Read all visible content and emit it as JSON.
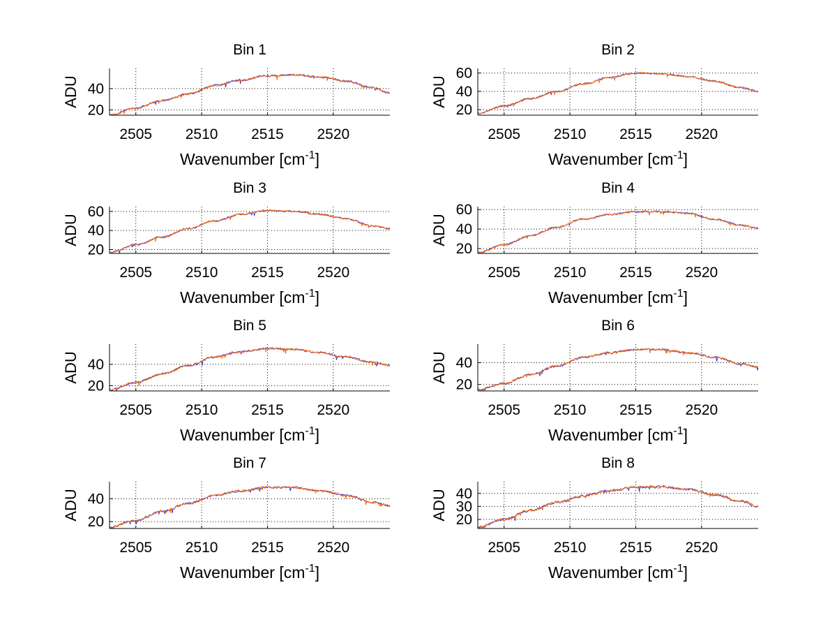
{
  "figure": {
    "colors": {
      "line_primary": "#ff6600",
      "line_secondary": "#3333cc",
      "axis": "#000000",
      "grid": "#000000"
    }
  },
  "chart_data": [
    {
      "type": "line",
      "title": "Bin 1",
      "xlabel": "Wavenumber [cm",
      "xlabel_sup": "-1",
      "xlabel_end": "]",
      "ylabel": "ADU",
      "xlim": [
        2503,
        2524.3
      ],
      "ylim": [
        15,
        59
      ],
      "xticks": [
        2505,
        2510,
        2515,
        2520
      ],
      "yticks": [
        20,
        40
      ],
      "series": [
        {
          "x": [
            2503,
            2505,
            2507,
            2509,
            2511,
            2513,
            2515,
            2517,
            2519,
            2521,
            2523,
            2524.3
          ],
          "values": [
            15,
            22,
            29,
            35,
            43,
            48,
            52,
            53,
            51,
            47,
            41,
            36
          ]
        }
      ]
    },
    {
      "type": "line",
      "title": "Bin 2",
      "xlabel": "Wavenumber [cm",
      "xlabel_sup": "-1",
      "xlabel_end": "]",
      "ylabel": "ADU",
      "xlim": [
        2503,
        2524.3
      ],
      "ylim": [
        14,
        65
      ],
      "xticks": [
        2505,
        2510,
        2515,
        2520
      ],
      "yticks": [
        20,
        40,
        60
      ],
      "series": [
        {
          "x": [
            2503,
            2505,
            2507,
            2509,
            2511,
            2513,
            2515,
            2517,
            2519,
            2521,
            2523,
            2524.3
          ],
          "values": [
            16,
            24,
            32,
            40,
            48,
            55,
            60,
            59,
            56,
            51,
            44,
            40
          ]
        }
      ]
    },
    {
      "type": "line",
      "title": "Bin 3",
      "xlabel": "Wavenumber [cm",
      "xlabel_sup": "-1",
      "xlabel_end": "]",
      "ylabel": "ADU",
      "xlim": [
        2503,
        2524.3
      ],
      "ylim": [
        16,
        65
      ],
      "xticks": [
        2505,
        2510,
        2515,
        2520
      ],
      "yticks": [
        20,
        40,
        60
      ],
      "series": [
        {
          "x": [
            2503,
            2505,
            2507,
            2509,
            2511,
            2513,
            2515,
            2517,
            2519,
            2521,
            2523,
            2524.3
          ],
          "values": [
            17,
            25,
            33,
            42,
            50,
            57,
            61,
            60,
            57,
            52,
            45,
            42
          ]
        }
      ]
    },
    {
      "type": "line",
      "title": "Bin 4",
      "xlabel": "Wavenumber [cm",
      "xlabel_sup": "-1",
      "xlabel_end": "]",
      "ylabel": "ADU",
      "xlim": [
        2503,
        2524.3
      ],
      "ylim": [
        15,
        63
      ],
      "xticks": [
        2505,
        2510,
        2515,
        2520
      ],
      "yticks": [
        20,
        40,
        60
      ],
      "series": [
        {
          "x": [
            2503,
            2505,
            2507,
            2509,
            2511,
            2513,
            2515,
            2517,
            2519,
            2521,
            2523,
            2524.3
          ],
          "values": [
            16,
            24,
            33,
            42,
            50,
            55,
            58,
            58,
            56,
            50,
            44,
            41
          ]
        }
      ]
    },
    {
      "type": "line",
      "title": "Bin 5",
      "xlabel": "Wavenumber [cm",
      "xlabel_sup": "-1",
      "xlabel_end": "]",
      "ylabel": "ADU",
      "xlim": [
        2503,
        2524.3
      ],
      "ylim": [
        15,
        59
      ],
      "xticks": [
        2505,
        2510,
        2515,
        2520
      ],
      "yticks": [
        20,
        40
      ],
      "series": [
        {
          "x": [
            2503,
            2505,
            2507,
            2509,
            2511,
            2513,
            2515,
            2517,
            2519,
            2521,
            2523,
            2524.3
          ],
          "values": [
            16,
            23,
            31,
            39,
            47,
            52,
            55,
            54,
            51,
            47,
            42,
            39
          ]
        }
      ]
    },
    {
      "type": "line",
      "title": "Bin 6",
      "xlabel": "Wavenumber [cm",
      "xlabel_sup": "-1",
      "xlabel_end": "]",
      "ylabel": "ADU",
      "xlim": [
        2503,
        2524.3
      ],
      "ylim": [
        14,
        57
      ],
      "xticks": [
        2505,
        2510,
        2515,
        2520
      ],
      "yticks": [
        20,
        40
      ],
      "series": [
        {
          "x": [
            2503,
            2505,
            2507,
            2509,
            2511,
            2513,
            2515,
            2517,
            2519,
            2521,
            2523,
            2524.3
          ],
          "values": [
            15,
            21,
            29,
            37,
            45,
            49,
            52,
            52,
            49,
            45,
            39,
            36
          ]
        }
      ]
    },
    {
      "type": "line",
      "title": "Bin 7",
      "xlabel": "Wavenumber [cm",
      "xlabel_sup": "-1",
      "xlabel_end": "]",
      "ylabel": "ADU",
      "xlim": [
        2503,
        2524.3
      ],
      "ylim": [
        14,
        55
      ],
      "xticks": [
        2505,
        2510,
        2515,
        2520
      ],
      "yticks": [
        20,
        40
      ],
      "series": [
        {
          "x": [
            2503,
            2505,
            2507,
            2509,
            2511,
            2513,
            2515,
            2517,
            2519,
            2521,
            2523,
            2524.3
          ],
          "values": [
            15,
            21,
            29,
            36,
            43,
            47,
            50,
            50,
            47,
            43,
            37,
            34
          ]
        }
      ]
    },
    {
      "type": "line",
      "title": "Bin 8",
      "xlabel": "Wavenumber [cm",
      "xlabel_sup": "-1",
      "xlabel_end": "]",
      "ylabel": "ADU",
      "xlim": [
        2503,
        2524.3
      ],
      "ylim": [
        13,
        49
      ],
      "xticks": [
        2505,
        2510,
        2515,
        2520
      ],
      "yticks": [
        20,
        30,
        40
      ],
      "series": [
        {
          "x": [
            2503,
            2505,
            2507,
            2509,
            2511,
            2513,
            2515,
            2517,
            2519,
            2521,
            2523,
            2524.3
          ],
          "values": [
            14,
            20,
            27,
            33,
            38,
            42,
            45,
            45,
            43,
            39,
            34,
            30
          ]
        }
      ]
    }
  ]
}
